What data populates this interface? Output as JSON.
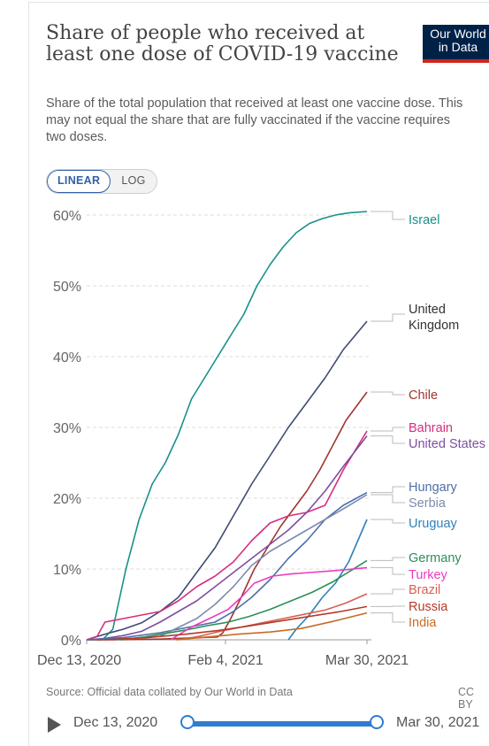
{
  "header": {
    "title": "Share of people who received at least one dose of COVID-19 vaccine",
    "logo_line1": "Our World",
    "logo_line2": "in Data",
    "subtitle": "Share of the total population that received at least one vaccine dose. This may not equal the share that are fully vaccinated if the vaccine requires two doses."
  },
  "toggle": {
    "linear": "LINEAR",
    "log": "LOG",
    "selected": "LINEAR"
  },
  "footer": {
    "source": "Source: Official data collated by Our World in Data",
    "license": "CC BY"
  },
  "timeline": {
    "start": "Dec 13, 2020",
    "end": "Mar 30, 2021"
  },
  "chart_data": {
    "type": "line",
    "title": "Share of people who received at least one dose of COVID-19 vaccine",
    "xlabel": "",
    "ylabel": "",
    "x_range": [
      "2020-12-13",
      "2021-03-30"
    ],
    "x_ticks": [
      "Dec 13, 2020",
      "Feb 4, 2021",
      "Mar 30, 2021"
    ],
    "y_ticks": [
      "0%",
      "10%",
      "20%",
      "30%",
      "40%",
      "50%",
      "60%"
    ],
    "ylim": [
      0,
      60
    ],
    "grid": "horizontal dashed",
    "legend": "right, labels at line ends",
    "series": [
      {
        "name": "Israel",
        "color": "#17918a",
        "x": [
          "2020-12-13",
          "2020-12-19",
          "2020-12-23",
          "2020-12-28",
          "2021-01-02",
          "2021-01-07",
          "2021-01-12",
          "2021-01-17",
          "2021-01-22",
          "2021-01-27",
          "2021-02-01",
          "2021-02-06",
          "2021-02-11",
          "2021-02-16",
          "2021-02-21",
          "2021-02-26",
          "2021-03-03",
          "2021-03-08",
          "2021-03-13",
          "2021-03-18",
          "2021-03-23",
          "2021-03-30"
        ],
        "values": [
          0,
          0,
          1.5,
          10,
          17,
          22,
          25,
          29,
          34,
          37,
          40,
          43,
          46,
          50,
          53,
          55.5,
          57.5,
          58.8,
          59.5,
          60,
          60.3,
          60.5
        ]
      },
      {
        "name": "United Kingdom",
        "color": "#3f4b73",
        "x": [
          "2020-12-13",
          "2020-12-20",
          "2020-12-27",
          "2021-01-03",
          "2021-01-10",
          "2021-01-17",
          "2021-01-24",
          "2021-01-31",
          "2021-02-07",
          "2021-02-14",
          "2021-02-21",
          "2021-02-28",
          "2021-03-07",
          "2021-03-14",
          "2021-03-21",
          "2021-03-30"
        ],
        "values": [
          0,
          0.8,
          1.5,
          2.4,
          4,
          6,
          9.5,
          13,
          17.5,
          22,
          26,
          30,
          33.5,
          37,
          41,
          45
        ]
      },
      {
        "name": "Chile",
        "color": "#a2352e",
        "x": [
          "2020-12-13",
          "2020-12-24",
          "2021-01-10",
          "2021-01-25",
          "2021-02-01",
          "2021-02-03",
          "2021-02-06",
          "2021-02-10",
          "2021-02-15",
          "2021-02-20",
          "2021-02-25",
          "2021-03-02",
          "2021-03-07",
          "2021-03-12",
          "2021-03-17",
          "2021-03-22",
          "2021-03-30"
        ],
        "values": [
          0,
          0,
          0.1,
          0.3,
          0.4,
          1,
          3,
          6,
          10,
          13,
          16,
          18.5,
          21,
          24,
          27.5,
          31,
          35
        ]
      },
      {
        "name": "Bahrain",
        "color": "#d52e7e",
        "x": [
          "2020-12-13",
          "2020-12-17",
          "2020-12-20",
          "2020-12-27",
          "2021-01-03",
          "2021-01-10",
          "2021-01-17",
          "2021-01-24",
          "2021-01-31",
          "2021-02-07",
          "2021-02-14",
          "2021-02-21",
          "2021-02-28",
          "2021-03-07",
          "2021-03-14",
          "2021-03-21",
          "2021-03-30"
        ],
        "values": [
          0,
          0.5,
          2.5,
          3,
          3.5,
          4,
          5.5,
          7.5,
          9,
          11,
          14,
          16.5,
          17.5,
          18,
          19,
          24,
          29.5
        ]
      },
      {
        "name": "United States",
        "color": "#7e4fa0",
        "x": [
          "2020-12-13",
          "2020-12-20",
          "2020-12-27",
          "2021-01-03",
          "2021-01-10",
          "2021-01-17",
          "2021-01-24",
          "2021-01-31",
          "2021-02-07",
          "2021-02-14",
          "2021-02-21",
          "2021-02-28",
          "2021-03-07",
          "2021-03-14",
          "2021-03-21",
          "2021-03-30"
        ],
        "values": [
          0,
          0.2,
          0.6,
          1.2,
          2.5,
          4,
          5.5,
          7.5,
          9.5,
          11.5,
          13.5,
          15.5,
          18,
          21,
          24.5,
          28.8
        ]
      },
      {
        "name": "Hungary",
        "color": "#4e6fa8",
        "x": [
          "2020-12-13",
          "2020-12-27",
          "2021-01-10",
          "2021-01-24",
          "2021-01-31",
          "2021-02-07",
          "2021-02-14",
          "2021-02-21",
          "2021-02-28",
          "2021-03-07",
          "2021-03-14",
          "2021-03-21",
          "2021-03-30"
        ],
        "values": [
          0,
          0.3,
          1,
          2,
          2.5,
          4,
          6,
          8.5,
          11.5,
          14,
          17,
          19,
          20.8
        ]
      },
      {
        "name": "Serbia",
        "color": "#7d8bae",
        "x": [
          "2020-12-24",
          "2021-01-10",
          "2021-01-24",
          "2021-01-31",
          "2021-02-07",
          "2021-02-14",
          "2021-02-21",
          "2021-02-28",
          "2021-03-07",
          "2021-03-14",
          "2021-03-21",
          "2021-03-30"
        ],
        "values": [
          0,
          0.5,
          3,
          5,
          7.5,
          10.5,
          12.5,
          14,
          15.5,
          17,
          18.5,
          20.5
        ]
      },
      {
        "name": "Uruguay",
        "color": "#2c82bb",
        "x": [
          "2021-02-28",
          "2021-03-03",
          "2021-03-08",
          "2021-03-13",
          "2021-03-18",
          "2021-03-23",
          "2021-03-30"
        ],
        "values": [
          0,
          1.5,
          3.5,
          6,
          8,
          11,
          17
        ]
      },
      {
        "name": "Germany",
        "color": "#2c8f57",
        "x": [
          "2020-12-26",
          "2021-01-04",
          "2021-01-12",
          "2021-01-20",
          "2021-01-28",
          "2021-02-05",
          "2021-02-13",
          "2021-02-21",
          "2021-03-01",
          "2021-03-09",
          "2021-03-17",
          "2021-03-24",
          "2021-03-30"
        ],
        "values": [
          0,
          0.4,
          0.9,
          1.4,
          2,
          2.5,
          3.3,
          4.3,
          5.5,
          6.7,
          8.2,
          9.8,
          11.2
        ]
      },
      {
        "name": "Turkey",
        "color": "#ea3cc0",
        "x": [
          "2021-01-14",
          "2021-01-22",
          "2021-01-30",
          "2021-02-05",
          "2021-02-10",
          "2021-02-15",
          "2021-02-22",
          "2021-03-01",
          "2021-03-08",
          "2021-03-15",
          "2021-03-22",
          "2021-03-30"
        ],
        "values": [
          0,
          1.8,
          3.2,
          4.3,
          6,
          8,
          9,
          9.3,
          9.5,
          9.7,
          9.9,
          10.2
        ]
      },
      {
        "name": "Brazil",
        "color": "#d85f55",
        "x": [
          "2021-01-17",
          "2021-01-25",
          "2021-02-02",
          "2021-02-10",
          "2021-02-18",
          "2021-02-26",
          "2021-03-06",
          "2021-03-14",
          "2021-03-22",
          "2021-03-30"
        ],
        "values": [
          0,
          0.5,
          1.2,
          1.8,
          2.4,
          3,
          3.6,
          4.2,
          5.2,
          6.5
        ]
      },
      {
        "name": "Russia",
        "color": "#b43a2a",
        "x": [
          "2020-12-20",
          "2021-01-05",
          "2021-01-20",
          "2021-02-01",
          "2021-02-12",
          "2021-02-24",
          "2021-03-08",
          "2021-03-20",
          "2021-03-30"
        ],
        "values": [
          0,
          0.3,
          0.8,
          1.3,
          1.9,
          2.6,
          3.3,
          4,
          4.7
        ]
      },
      {
        "name": "India",
        "color": "#c86b25",
        "x": [
          "2021-01-16",
          "2021-01-28",
          "2021-02-09",
          "2021-02-21",
          "2021-03-05",
          "2021-03-17",
          "2021-03-30"
        ],
        "values": [
          0,
          0.4,
          0.8,
          1.1,
          1.6,
          2.6,
          3.8
        ]
      }
    ]
  }
}
